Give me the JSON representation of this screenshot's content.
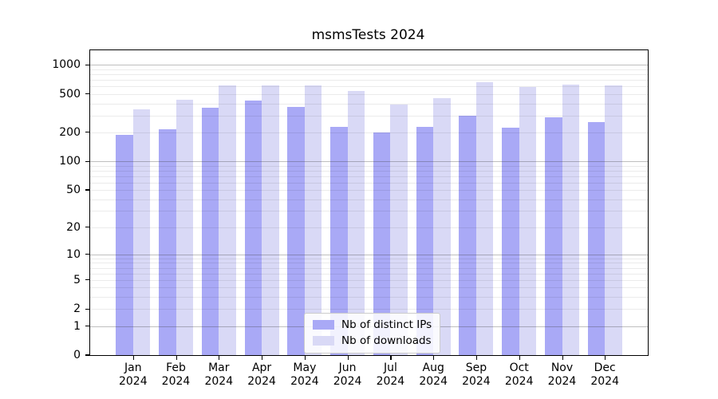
{
  "chart_data": {
    "type": "bar",
    "title": "msmsTests 2024",
    "year_label": "2024",
    "categories": [
      "Jan",
      "Feb",
      "Mar",
      "Apr",
      "May",
      "Jun",
      "Jul",
      "Aug",
      "Sep",
      "Oct",
      "Nov",
      "Dec"
    ],
    "series": [
      {
        "name": "Nb of distinct IPs",
        "color": "#a9a9f6",
        "values": [
          190,
          217,
          358,
          428,
          365,
          228,
          198,
          228,
          300,
          224,
          289,
          256
        ]
      },
      {
        "name": "Nb of downloads",
        "color": "#d9d9f6",
        "values": [
          350,
          433,
          620,
          612,
          610,
          538,
          391,
          450,
          662,
          588,
          626,
          614
        ]
      }
    ],
    "xlabel": "",
    "ylabel": "",
    "yscale": "symlog",
    "ylim": [
      0,
      1400
    ],
    "yticks": [
      1000,
      500,
      200,
      100,
      50,
      20,
      10,
      5,
      2,
      1,
      0
    ],
    "major_gridlines": [
      1,
      10,
      100,
      1000
    ],
    "minor_gridlines": [
      2,
      3,
      4,
      5,
      6,
      7,
      8,
      9,
      20,
      30,
      40,
      50,
      60,
      70,
      80,
      90,
      200,
      300,
      400,
      500,
      600,
      700,
      800,
      900
    ],
    "grid": "horizontal, major and minor, drawn over bars",
    "legend_position": "lower center"
  },
  "colors": {
    "background": "#ffffff",
    "axis_frame": "#000000",
    "distinct_ips_bar": "#a9a9f6",
    "downloads_bar": "#d9d9f6"
  }
}
